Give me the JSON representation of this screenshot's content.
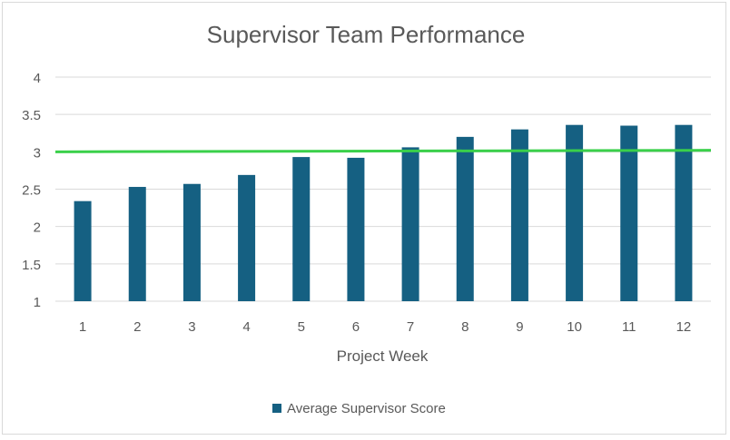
{
  "chart_data": {
    "type": "bar",
    "title": "Supervisor Team Performance",
    "xlabel": "Project Week",
    "ylabel": "",
    "categories": [
      "1",
      "2",
      "3",
      "4",
      "5",
      "6",
      "7",
      "8",
      "9",
      "10",
      "11",
      "12"
    ],
    "series": [
      {
        "name": "Average Supervisor Score",
        "values": [
          2.34,
          2.53,
          2.57,
          2.69,
          2.93,
          2.92,
          3.06,
          3.2,
          3.3,
          3.36,
          3.35,
          3.36
        ],
        "color": "#156082"
      }
    ],
    "reference_line": {
      "from": 3.0,
      "to": 3.02,
      "color": "#3ad04a"
    },
    "ylim": [
      1,
      4
    ],
    "yticks": [
      "1",
      "1.5",
      "2",
      "2.5",
      "3",
      "3.5",
      "4"
    ],
    "grid": true,
    "legend": "bottom"
  }
}
